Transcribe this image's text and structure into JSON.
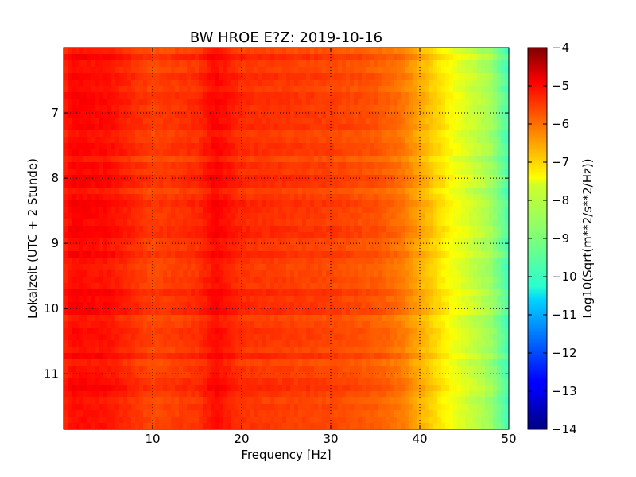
{
  "chart_data": {
    "type": "heatmap",
    "title": "BW HROE E?Z: 2019-10-16",
    "xlabel": "Frequency [Hz]",
    "ylabel": "Lokalzeit (UTC + 2 Stunde)",
    "colorbar_label": "Log10(Sqrt(m**2/s**2/Hz))",
    "xlim": [
      0,
      50
    ],
    "ylim": [
      6.0,
      11.85
    ],
    "y_inverted": true,
    "x_ticks": [
      10,
      20,
      30,
      40,
      50
    ],
    "x_tick_labels": [
      "10",
      "20",
      "30",
      "40",
      "50"
    ],
    "y_ticks": [
      7,
      8,
      9,
      10,
      11
    ],
    "y_tick_labels": [
      "7",
      "8",
      "9",
      "10",
      "11"
    ],
    "colorbar_range": [
      -14,
      -4
    ],
    "colorbar_ticks": [
      -4,
      -5,
      -6,
      -7,
      -8,
      -9,
      -10,
      -11,
      -12,
      -13,
      -14
    ],
    "colorbar_tick_labels": [
      "−4",
      "−5",
      "−6",
      "−7",
      "−8",
      "−9",
      "−10",
      "−11",
      "−12",
      "−13",
      "−14"
    ],
    "colormap": "jet",
    "grid": true,
    "spectrum_profile": {
      "frequency_hz": [
        0,
        1,
        5,
        10,
        15,
        17,
        20,
        25,
        30,
        35,
        38,
        40,
        42,
        44,
        46,
        48,
        50
      ],
      "log10_amplitude": [
        -5.6,
        -5.3,
        -5.4,
        -5.9,
        -5.7,
        -5.3,
        -5.7,
        -5.8,
        -5.9,
        -6.1,
        -6.4,
        -6.9,
        -7.4,
        -7.9,
        -8.3,
        -8.7,
        -9.6
      ]
    }
  }
}
